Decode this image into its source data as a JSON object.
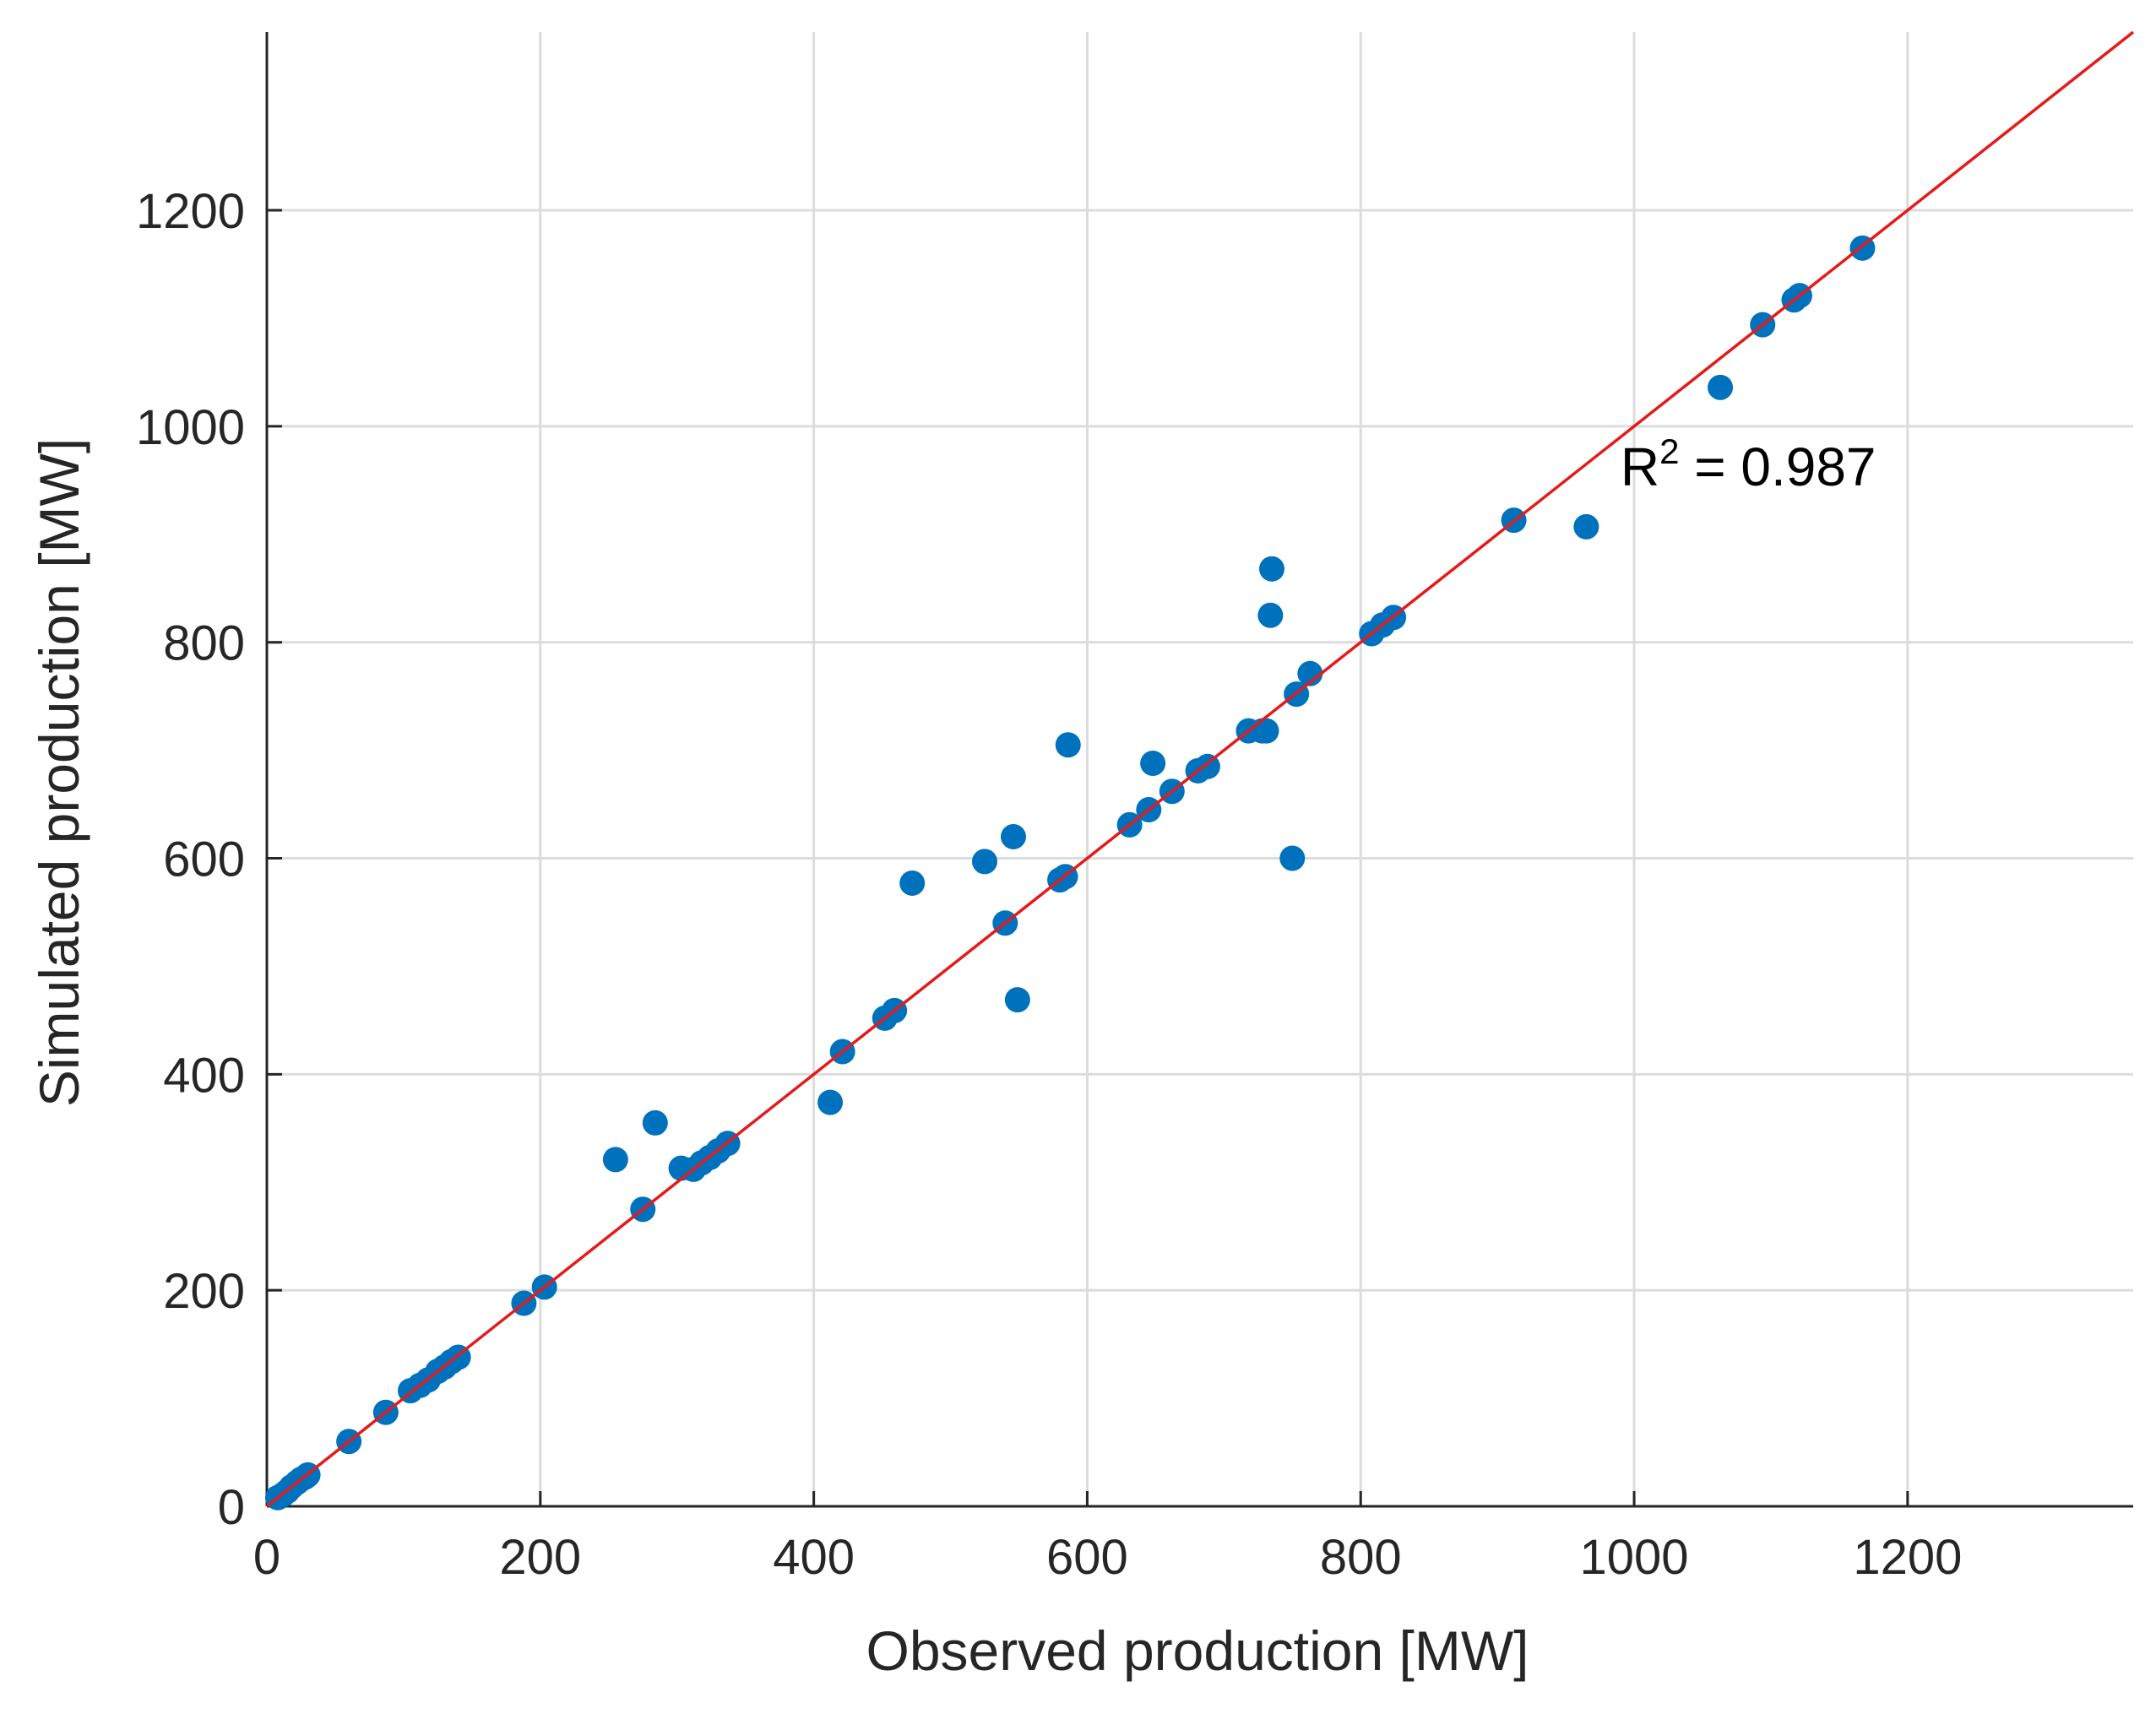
{
  "chart_data": {
    "type": "scatter",
    "title": "",
    "xlabel": "Observed production [MW]",
    "ylabel": "Simulated production [MW]",
    "xlim": [
      0,
      1365
    ],
    "ylim": [
      0,
      1365
    ],
    "x_ticks": [
      0,
      200,
      400,
      600,
      800,
      1000,
      1200
    ],
    "y_ticks": [
      0,
      200,
      400,
      600,
      800,
      1000,
      1200
    ],
    "grid": true,
    "point_color": "#0072BD",
    "line_color": "#E41A1C",
    "reference_line": {
      "name": "y = x",
      "from": [
        0,
        0
      ],
      "to": [
        1365,
        1365
      ]
    },
    "annotation": {
      "base": "R",
      "sup": "2",
      "rest": " = 0.987",
      "at": [
        990,
        945
      ]
    },
    "series": [
      {
        "name": "Observed vs simulated",
        "points": [
          [
            8,
            8
          ],
          [
            12,
            11
          ],
          [
            15,
            14
          ],
          [
            18,
            18
          ],
          [
            22,
            22
          ],
          [
            25,
            25
          ],
          [
            28,
            27
          ],
          [
            30,
            29
          ],
          [
            60,
            60
          ],
          [
            87,
            87
          ],
          [
            105,
            107
          ],
          [
            112,
            112
          ],
          [
            118,
            117
          ],
          [
            125,
            125
          ],
          [
            130,
            129
          ],
          [
            135,
            134
          ],
          [
            140,
            138
          ],
          [
            188,
            188
          ],
          [
            203,
            203
          ],
          [
            255,
            321
          ],
          [
            275,
            275
          ],
          [
            284,
            355
          ],
          [
            303,
            313
          ],
          [
            312,
            312
          ],
          [
            318,
            318
          ],
          [
            324,
            323
          ],
          [
            330,
            329
          ],
          [
            337,
            336
          ],
          [
            412,
            374
          ],
          [
            421,
            421
          ],
          [
            452,
            452
          ],
          [
            459,
            459
          ],
          [
            472,
            577
          ],
          [
            525,
            597
          ],
          [
            540,
            540
          ],
          [
            546,
            620
          ],
          [
            549,
            469
          ],
          [
            580,
            580
          ],
          [
            584,
            583
          ],
          [
            586,
            705
          ],
          [
            631,
            631
          ],
          [
            645,
            645
          ],
          [
            648,
            688
          ],
          [
            662,
            662
          ],
          [
            681,
            681
          ],
          [
            688,
            685
          ],
          [
            718,
            718
          ],
          [
            728,
            718
          ],
          [
            731,
            718
          ],
          [
            734,
            825
          ],
          [
            735,
            868
          ],
          [
            750,
            600
          ],
          [
            753,
            752
          ],
          [
            763,
            771
          ],
          [
            808,
            808
          ],
          [
            816,
            816
          ],
          [
            824,
            823
          ],
          [
            912,
            913
          ],
          [
            965,
            907
          ],
          [
            1063,
            1036
          ],
          [
            1094,
            1094
          ],
          [
            1117,
            1117
          ],
          [
            1121,
            1121
          ],
          [
            1167,
            1165
          ]
        ]
      }
    ]
  }
}
